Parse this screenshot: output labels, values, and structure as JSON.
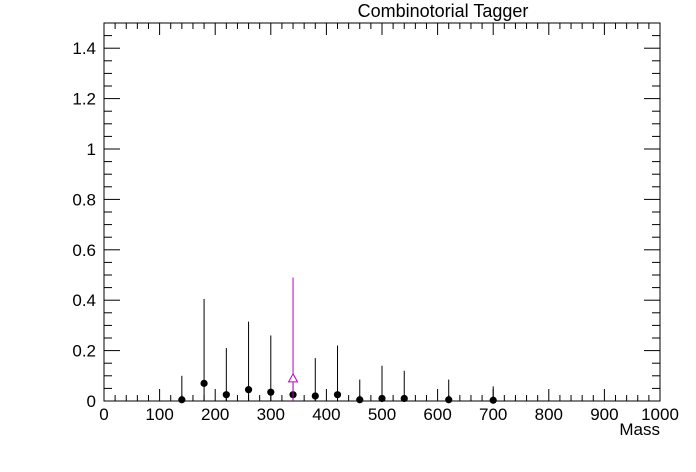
{
  "chart_data": {
    "type": "scatter",
    "title": "Combinotorial Tagger",
    "xlabel": "Mass",
    "ylabel": "",
    "xlim": [
      0,
      1000
    ],
    "ylim": [
      0,
      1.5
    ],
    "x_tick_labels": [
      "0",
      "100",
      "200",
      "300",
      "400",
      "500",
      "600",
      "700",
      "800",
      "900",
      "1000"
    ],
    "y_tick_labels": [
      "0",
      "0.2",
      "0.4",
      "0.6",
      "0.8",
      "1",
      "1.2",
      "1.4"
    ],
    "grid": false,
    "legend": "none",
    "series": [
      {
        "marker": "filled-circle",
        "color": "#000000",
        "points": [
          {
            "x": 140,
            "y": 0.005,
            "err_up": 0.095
          },
          {
            "x": 180,
            "y": 0.07,
            "err_up": 0.335
          },
          {
            "x": 220,
            "y": 0.025,
            "err_up": 0.185
          },
          {
            "x": 260,
            "y": 0.045,
            "err_up": 0.27
          },
          {
            "x": 300,
            "y": 0.035,
            "err_up": 0.225
          },
          {
            "x": 340,
            "y": 0.025,
            "err_up": 0.045
          },
          {
            "x": 380,
            "y": 0.02,
            "err_up": 0.15
          },
          {
            "x": 420,
            "y": 0.025,
            "err_up": 0.195
          },
          {
            "x": 460,
            "y": 0.005,
            "err_up": 0.08
          },
          {
            "x": 500,
            "y": 0.01,
            "err_up": 0.13
          },
          {
            "x": 540,
            "y": 0.01,
            "err_up": 0.11
          },
          {
            "x": 620,
            "y": 0.005,
            "err_up": 0.08
          },
          {
            "x": 700,
            "y": 0.003,
            "err_up": 0.055
          }
        ]
      },
      {
        "marker": "open-triangle",
        "color": "#c000c0",
        "points": [
          {
            "x": 340,
            "y": 0.09,
            "err_up": 0.4
          }
        ]
      }
    ]
  }
}
